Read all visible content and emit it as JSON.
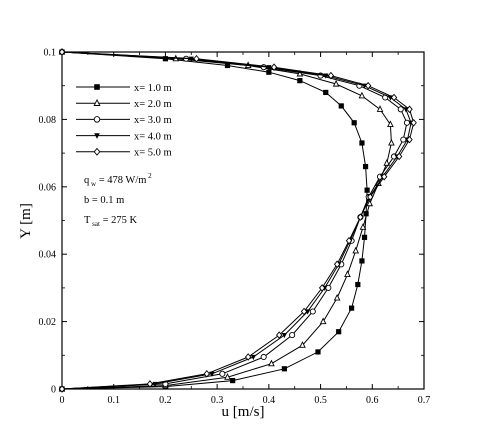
{
  "chart_data": {
    "type": "line",
    "xlabel": "u [m/s]",
    "ylabel": "Y [m]",
    "xlim": [
      0,
      0.7
    ],
    "ylim": [
      0,
      0.1
    ],
    "xticks": [
      0,
      0.1,
      0.2,
      0.3,
      0.4,
      0.5,
      0.6,
      0.7
    ],
    "yticks": [
      0,
      0.02,
      0.04,
      0.06,
      0.08,
      0.1
    ],
    "grid": false,
    "legend_position": "top-left",
    "annotations": [
      {
        "text": "q",
        "sub": "w",
        "rest": " = 478 W/m",
        "sup": "2"
      },
      {
        "text": "b = 0.1 m",
        "sub": "",
        "rest": "",
        "sup": ""
      },
      {
        "text": "T",
        "sub": "sat",
        "rest": " = 275 K",
        "sup": ""
      }
    ],
    "series": [
      {
        "name": "x= 1.0 m",
        "marker": "square",
        "points": [
          [
            0.0,
            0.1
          ],
          [
            0.2,
            0.098
          ],
          [
            0.32,
            0.096
          ],
          [
            0.4,
            0.094
          ],
          [
            0.46,
            0.0915
          ],
          [
            0.51,
            0.088
          ],
          [
            0.54,
            0.084
          ],
          [
            0.565,
            0.079
          ],
          [
            0.58,
            0.073
          ],
          [
            0.587,
            0.066
          ],
          [
            0.59,
            0.059
          ],
          [
            0.588,
            0.052
          ],
          [
            0.585,
            0.045
          ],
          [
            0.58,
            0.038
          ],
          [
            0.572,
            0.031
          ],
          [
            0.56,
            0.024
          ],
          [
            0.535,
            0.017
          ],
          [
            0.495,
            0.011
          ],
          [
            0.43,
            0.006
          ],
          [
            0.33,
            0.0025
          ],
          [
            0.2,
            0.0007
          ],
          [
            0.0,
            0.0
          ]
        ]
      },
      {
        "name": "x= 2.0 m",
        "marker": "triangle",
        "points": [
          [
            0.0,
            0.1
          ],
          [
            0.22,
            0.098
          ],
          [
            0.36,
            0.096
          ],
          [
            0.46,
            0.0935
          ],
          [
            0.53,
            0.0905
          ],
          [
            0.58,
            0.087
          ],
          [
            0.615,
            0.083
          ],
          [
            0.635,
            0.0785
          ],
          [
            0.637,
            0.073
          ],
          [
            0.628,
            0.067
          ],
          [
            0.612,
            0.061
          ],
          [
            0.595,
            0.055
          ],
          [
            0.582,
            0.048
          ],
          [
            0.568,
            0.041
          ],
          [
            0.552,
            0.034
          ],
          [
            0.532,
            0.027
          ],
          [
            0.505,
            0.02
          ],
          [
            0.465,
            0.013
          ],
          [
            0.405,
            0.0075
          ],
          [
            0.32,
            0.0035
          ],
          [
            0.2,
            0.001
          ],
          [
            0.0,
            0.0
          ]
        ]
      },
      {
        "name": "x= 3.0 m",
        "marker": "circle",
        "points": [
          [
            0.0,
            0.1
          ],
          [
            0.24,
            0.098
          ],
          [
            0.39,
            0.0955
          ],
          [
            0.5,
            0.093
          ],
          [
            0.575,
            0.09
          ],
          [
            0.625,
            0.0865
          ],
          [
            0.655,
            0.083
          ],
          [
            0.667,
            0.079
          ],
          [
            0.66,
            0.074
          ],
          [
            0.642,
            0.069
          ],
          [
            0.615,
            0.063
          ],
          [
            0.593,
            0.057
          ],
          [
            0.577,
            0.051
          ],
          [
            0.56,
            0.044
          ],
          [
            0.54,
            0.037
          ],
          [
            0.515,
            0.03
          ],
          [
            0.485,
            0.023
          ],
          [
            0.445,
            0.016
          ],
          [
            0.39,
            0.0095
          ],
          [
            0.31,
            0.0045
          ],
          [
            0.2,
            0.0015
          ],
          [
            0.0,
            0.0
          ]
        ]
      },
      {
        "name": "x= 4.0 m",
        "marker": "triangle-down",
        "points": [
          [
            0.0,
            0.1
          ],
          [
            0.25,
            0.098
          ],
          [
            0.4,
            0.0955
          ],
          [
            0.51,
            0.093
          ],
          [
            0.585,
            0.09
          ],
          [
            0.635,
            0.0865
          ],
          [
            0.665,
            0.083
          ],
          [
            0.675,
            0.079
          ],
          [
            0.668,
            0.074
          ],
          [
            0.648,
            0.069
          ],
          [
            0.62,
            0.063
          ],
          [
            0.595,
            0.057
          ],
          [
            0.577,
            0.051
          ],
          [
            0.557,
            0.044
          ],
          [
            0.535,
            0.037
          ],
          [
            0.508,
            0.03
          ],
          [
            0.475,
            0.023
          ],
          [
            0.43,
            0.016
          ],
          [
            0.37,
            0.0095
          ],
          [
            0.29,
            0.0045
          ],
          [
            0.18,
            0.0015
          ],
          [
            0.0,
            0.0
          ]
        ]
      },
      {
        "name": "x= 5.0 m",
        "marker": "diamond",
        "points": [
          [
            0.0,
            0.1
          ],
          [
            0.26,
            0.098
          ],
          [
            0.41,
            0.0955
          ],
          [
            0.52,
            0.093
          ],
          [
            0.592,
            0.09
          ],
          [
            0.642,
            0.0865
          ],
          [
            0.672,
            0.083
          ],
          [
            0.68,
            0.079
          ],
          [
            0.672,
            0.074
          ],
          [
            0.652,
            0.069
          ],
          [
            0.623,
            0.063
          ],
          [
            0.596,
            0.057
          ],
          [
            0.577,
            0.051
          ],
          [
            0.555,
            0.044
          ],
          [
            0.532,
            0.037
          ],
          [
            0.503,
            0.03
          ],
          [
            0.468,
            0.023
          ],
          [
            0.42,
            0.016
          ],
          [
            0.36,
            0.0095
          ],
          [
            0.28,
            0.0045
          ],
          [
            0.17,
            0.0015
          ],
          [
            0.0,
            0.0
          ]
        ]
      }
    ]
  }
}
